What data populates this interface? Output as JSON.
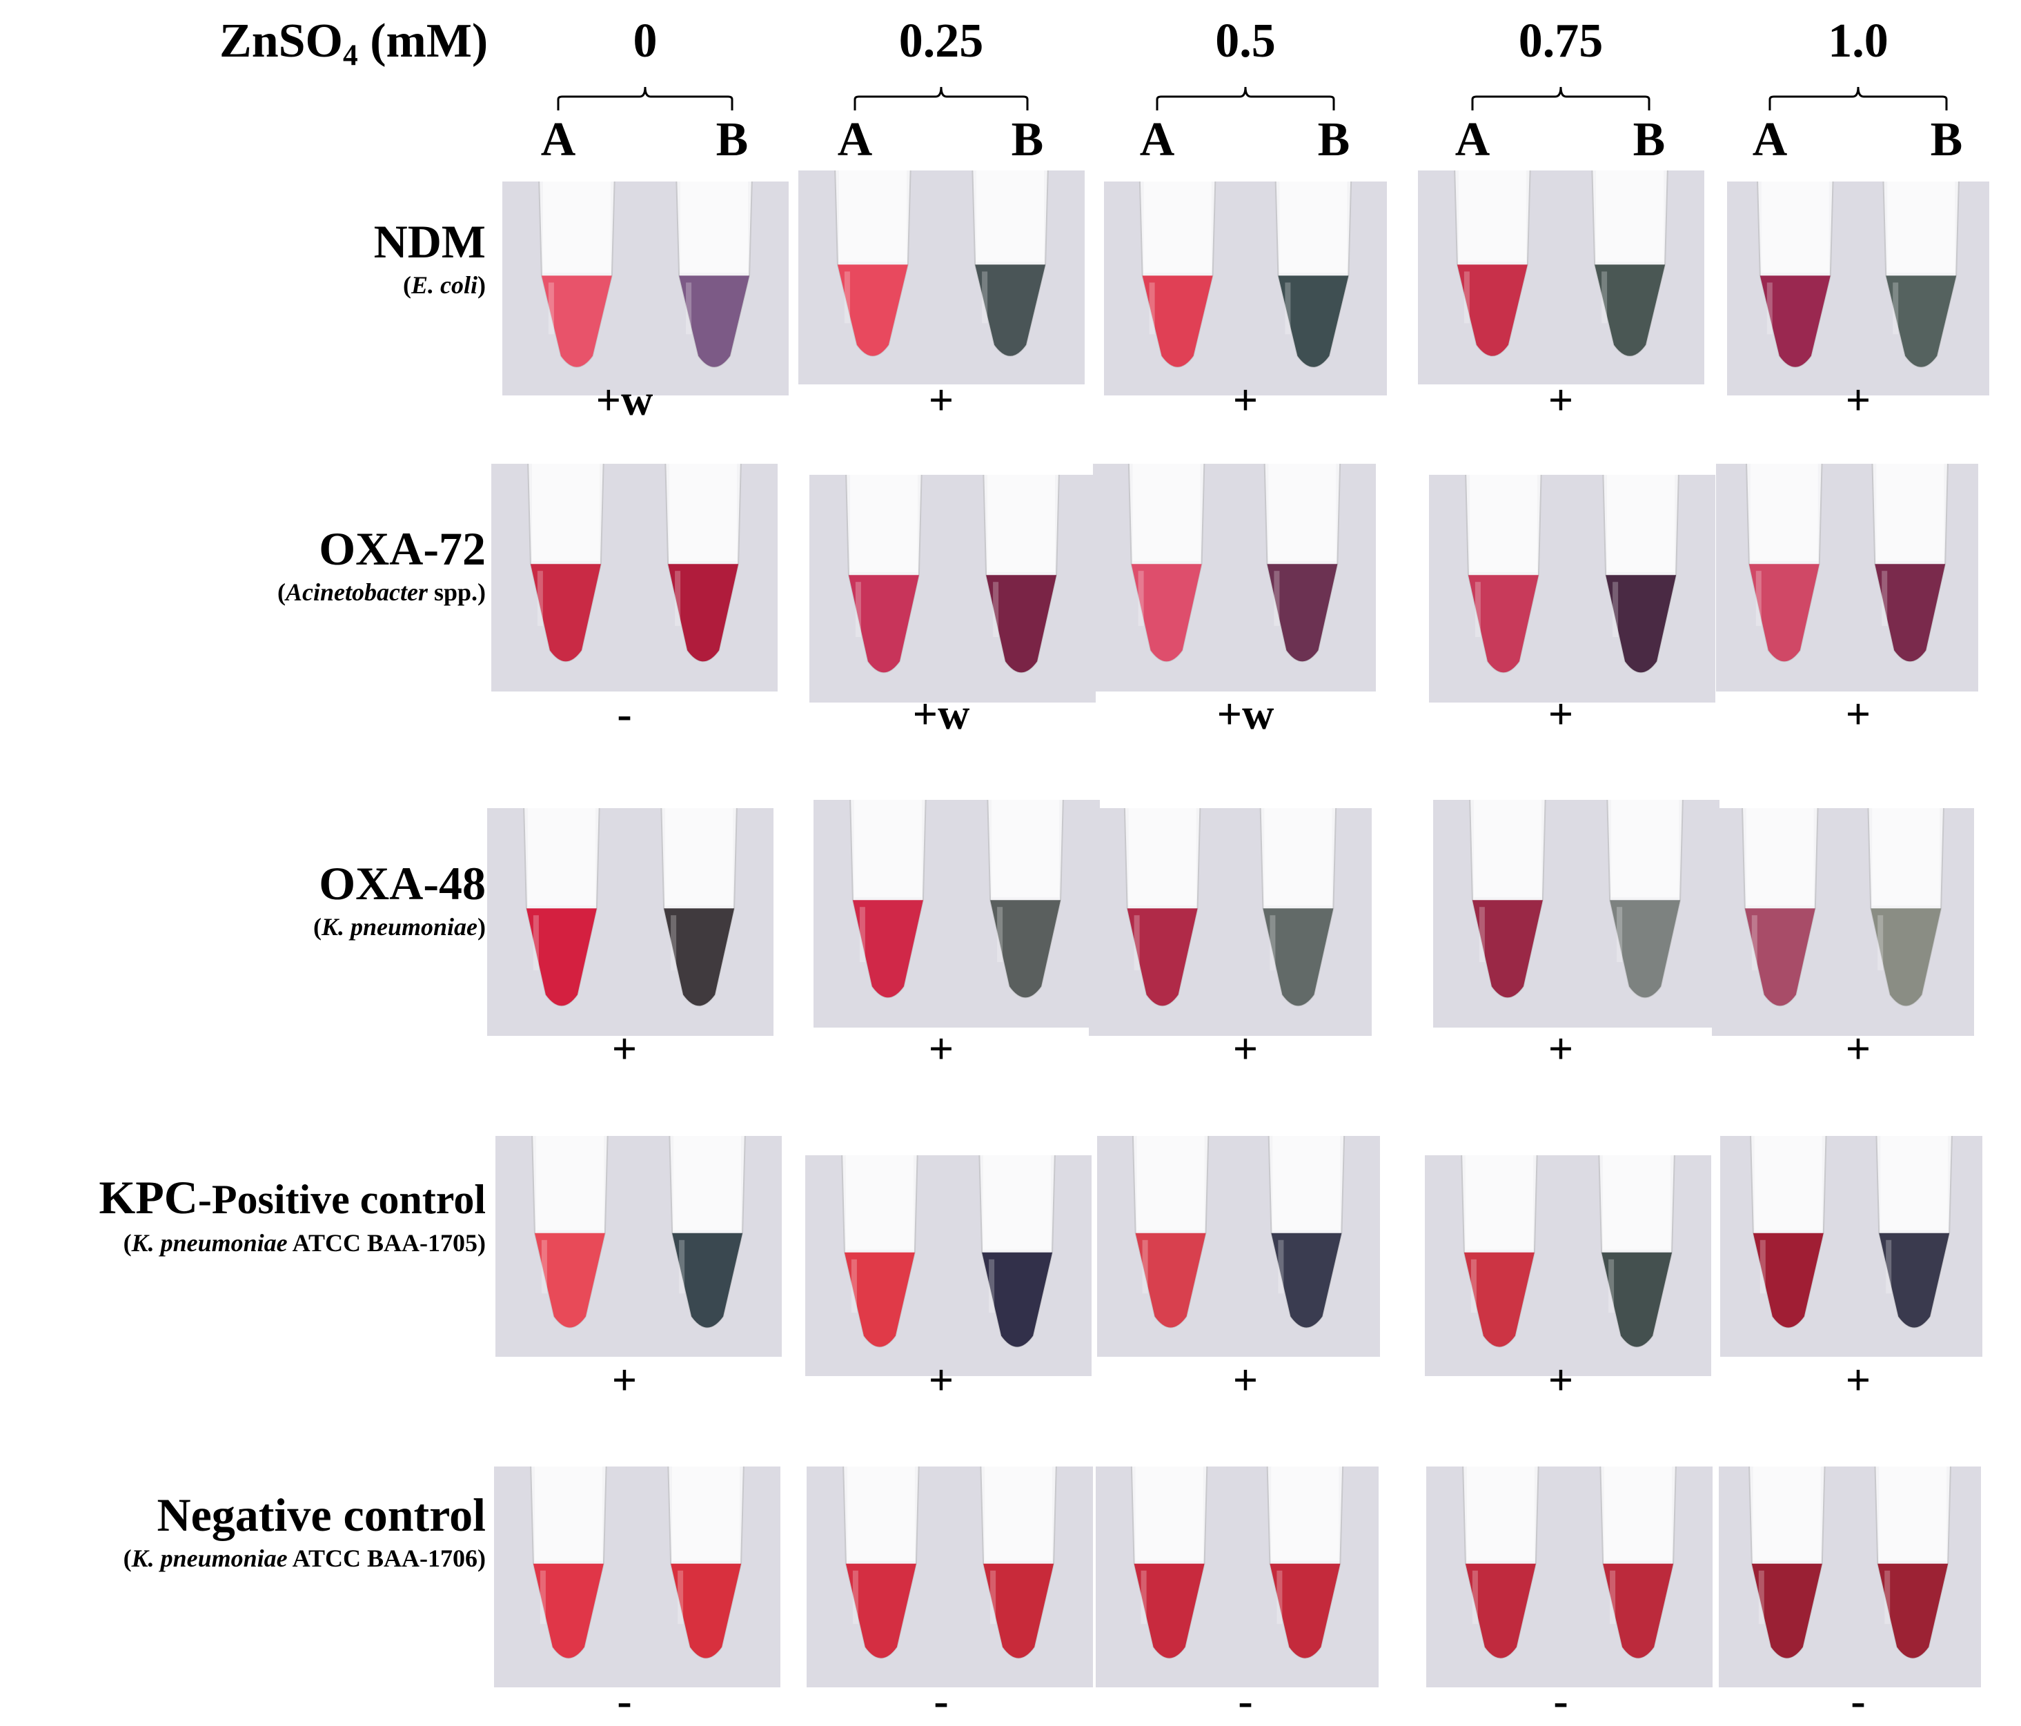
{
  "header": {
    "label_prefix": "ZnSO",
    "label_subscript": "4",
    "label_suffix": " (mM)",
    "concentrations": [
      "0",
      "0.25",
      "0.5",
      "0.75",
      "1.0"
    ],
    "tube_a": "A",
    "tube_b": "B"
  },
  "rows": [
    {
      "name": "NDM",
      "organism": "E. coli",
      "results": [
        "+w",
        "+",
        "+",
        "+",
        "+"
      ],
      "tube_a_colors": [
        "#e8536a",
        "#e8495e",
        "#e04055",
        "#c8304a",
        "#9a2850"
      ],
      "tube_b_colors": [
        "#7c5a86",
        "#4a5557",
        "#3f4f52",
        "#4a5754",
        "#55625f"
      ]
    },
    {
      "name": "OXA-72",
      "organism": "Acinetobacter",
      "organism_suffix": " spp.",
      "results": [
        "-",
        "+w",
        "+w",
        "+",
        "+"
      ],
      "tube_a_colors": [
        "#c92a45",
        "#c8345a",
        "#de4e6c",
        "#c83a5a",
        "#d04866"
      ],
      "tube_b_colors": [
        "#b01c3c",
        "#7a2446",
        "#6c3252",
        "#4a2a44",
        "#7a2a4c"
      ]
    },
    {
      "name": "OXA-48",
      "organism": "K. pneumoniae",
      "results": [
        "+",
        "+",
        "+",
        "+",
        "+"
      ],
      "tube_a_colors": [
        "#d42040",
        "#d02848",
        "#b02a48",
        "#9a2846",
        "#a84c68"
      ],
      "tube_b_colors": [
        "#403a3e",
        "#5a5f5e",
        "#626a68",
        "#7d8280",
        "#8a8d84"
      ]
    },
    {
      "name": "KPC",
      "name_suffix": "-Positive control",
      "organism": "K. pneumoniae",
      "organism_suffix": " ATCC BAA-1705",
      "results": [
        "+",
        "+",
        "+",
        "+",
        "+"
      ],
      "tube_a_colors": [
        "#e84a58",
        "#e03a48",
        "#d8404e",
        "#cc3444",
        "#a01e34"
      ],
      "tube_b_colors": [
        "#3a4850",
        "#32304a",
        "#3a3c50",
        "#44504f",
        "#3a3a4e"
      ]
    },
    {
      "name": "Negative control",
      "organism": "K. pneumoniae",
      "organism_suffix": " ATCC BAA-1706",
      "results": [
        "-",
        "-",
        "-",
        "-",
        "-"
      ],
      "tube_a_colors": [
        "#e03648",
        "#d42e42",
        "#c82a3e",
        "#c02a3e",
        "#9a2034"
      ],
      "tube_b_colors": [
        "#d8303e",
        "#c82a3a",
        "#c42a3c",
        "#bc2a3c",
        "#9c2234"
      ]
    }
  ],
  "colors": {
    "panel_bg": "#dcdbe3",
    "tube_plastic": "#f4f4f6",
    "text": "#000000"
  }
}
